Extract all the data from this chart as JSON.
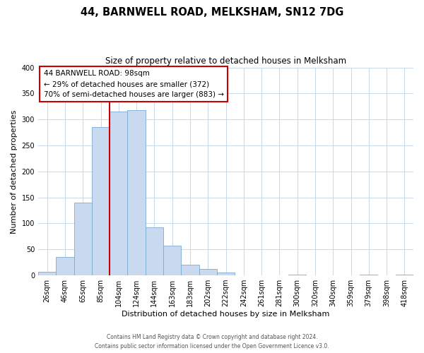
{
  "title": "44, BARNWELL ROAD, MELKSHAM, SN12 7DG",
  "subtitle": "Size of property relative to detached houses in Melksham",
  "xlabel": "Distribution of detached houses by size in Melksham",
  "ylabel": "Number of detached properties",
  "bin_labels": [
    "26sqm",
    "46sqm",
    "65sqm",
    "85sqm",
    "104sqm",
    "124sqm",
    "144sqm",
    "163sqm",
    "183sqm",
    "202sqm",
    "222sqm",
    "242sqm",
    "261sqm",
    "281sqm",
    "300sqm",
    "320sqm",
    "340sqm",
    "359sqm",
    "379sqm",
    "398sqm",
    "418sqm"
  ],
  "bar_heights": [
    7,
    35,
    140,
    285,
    315,
    318,
    92,
    57,
    20,
    12,
    5,
    0,
    0,
    0,
    2,
    0,
    0,
    0,
    1,
    0,
    1
  ],
  "bar_color": "#c9d9f0",
  "bar_edge_color": "#7aaad0",
  "vline_x_index": 4,
  "vline_color": "#cc0000",
  "ylim": [
    0,
    400
  ],
  "yticks": [
    0,
    50,
    100,
    150,
    200,
    250,
    300,
    350,
    400
  ],
  "annotation_text": "44 BARNWELL ROAD: 98sqm\n← 29% of detached houses are smaller (372)\n70% of semi-detached houses are larger (883) →",
  "annotation_box_color": "#ffffff",
  "annotation_box_edge": "#cc0000",
  "footer_line1": "Contains HM Land Registry data © Crown copyright and database right 2024.",
  "footer_line2": "Contains public sector information licensed under the Open Government Licence v3.0.",
  "bg_color": "#ffffff",
  "grid_color": "#c8d8ea"
}
